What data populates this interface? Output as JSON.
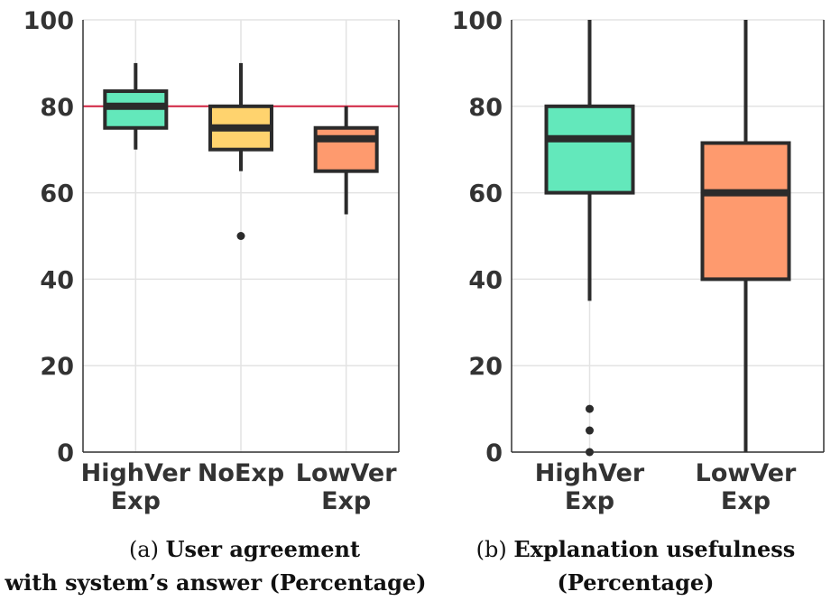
{
  "chart_data": [
    {
      "type": "boxplot",
      "id": "a",
      "caption_prefix": "(a)",
      "caption_title_line1": "User agreement",
      "caption_title_line2": "with system’s answer (Percentage)",
      "ylim": [
        0,
        100
      ],
      "yticks": [
        "0",
        "20",
        "40",
        "60",
        "80",
        "100"
      ],
      "grid": true,
      "reference_line": {
        "y": 80,
        "color": "#d0213f"
      },
      "categories": [
        {
          "label_line1": "HighVer",
          "label_line2": "Exp",
          "whisker_low": 70,
          "q1": 75,
          "median": 80,
          "q3": 83.5,
          "whisker_high": 90,
          "outliers": [],
          "color": "#63e8bb"
        },
        {
          "label_line1": "NoExp",
          "label_line2": "",
          "whisker_low": 65,
          "q1": 70,
          "median": 75,
          "q3": 80,
          "whisker_high": 90,
          "outliers": [
            50
          ],
          "color": "#ffd36e"
        },
        {
          "label_line1": "LowVer",
          "label_line2": "Exp",
          "whisker_low": 55,
          "q1": 65,
          "median": 72.5,
          "q3": 75,
          "whisker_high": 80,
          "outliers": [],
          "color": "#fe9a6e"
        }
      ]
    },
    {
      "type": "boxplot",
      "id": "b",
      "caption_prefix": "(b)",
      "caption_title_line1": "Explanation usefulness",
      "caption_title_line2": "(Percentage)",
      "ylim": [
        0,
        100
      ],
      "yticks": [
        "0",
        "20",
        "40",
        "60",
        "80",
        "100"
      ],
      "grid": true,
      "categories": [
        {
          "label_line1": "HighVer",
          "label_line2": "Exp",
          "whisker_low": 35,
          "q1": 60,
          "median": 72.5,
          "q3": 80,
          "whisker_high": 100,
          "outliers": [
            10,
            5,
            0
          ],
          "color": "#63e8bb"
        },
        {
          "label_line1": "LowVer",
          "label_line2": "Exp",
          "whisker_low": 0,
          "q1": 40,
          "median": 60,
          "q3": 71.5,
          "whisker_high": 100,
          "outliers": [],
          "color": "#fe9a6e"
        }
      ]
    }
  ]
}
